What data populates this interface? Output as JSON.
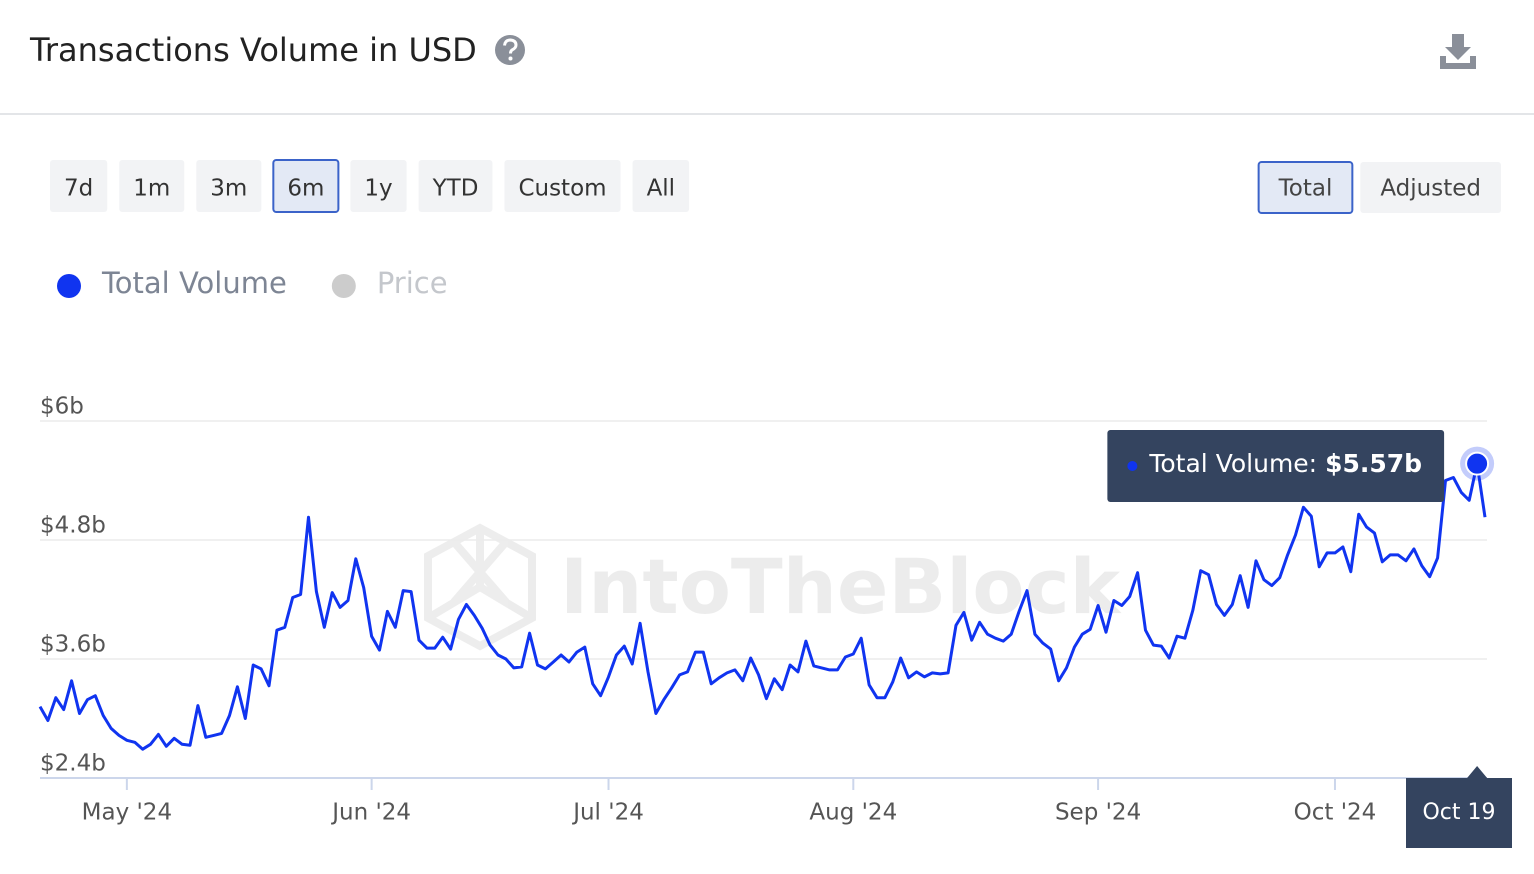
{
  "header": {
    "title": "Transactions Volume in USD"
  },
  "range_buttons": [
    "7d",
    "1m",
    "3m",
    "6m",
    "1y",
    "YTD",
    "Custom",
    "All"
  ],
  "selected_range_index": 3,
  "mode_buttons": [
    "Total",
    "Adjusted"
  ],
  "selected_mode_index": 0,
  "watermark": "IntoTheBlock",
  "chart_data": {
    "type": "line",
    "categories": [
      null,
      null,
      null,
      null,
      null,
      null,
      null,
      null,
      null,
      null,
      null,
      "May '24",
      null,
      null,
      null,
      null,
      null,
      null,
      null,
      null,
      null,
      null,
      null,
      null,
      null,
      null,
      null,
      null,
      null,
      null,
      null,
      null,
      null,
      null,
      null,
      null,
      null,
      null,
      null,
      null,
      null,
      null,
      "Jun '24",
      null,
      null,
      null,
      null,
      null,
      null,
      null,
      null,
      null,
      null,
      null,
      null,
      null,
      null,
      null,
      null,
      null,
      null,
      null,
      null,
      null,
      null,
      null,
      null,
      null,
      null,
      null,
      null,
      null,
      "Jul '24",
      null,
      null,
      null,
      null,
      null,
      null,
      null,
      null,
      null,
      null,
      null,
      null,
      null,
      null,
      null,
      null,
      null,
      null,
      null,
      null,
      null,
      null,
      null,
      null,
      null,
      null,
      null,
      null,
      null,
      null,
      "Aug '24",
      null,
      null,
      null,
      null,
      null,
      null,
      null,
      null,
      null,
      null,
      null,
      null,
      null,
      null,
      null,
      null,
      null,
      null,
      null,
      null,
      null,
      null,
      null,
      null,
      null,
      null,
      null,
      null,
      null,
      null,
      "Sep '24",
      null,
      null,
      null,
      null,
      null,
      null,
      null,
      null,
      null,
      null,
      null,
      null,
      null,
      null,
      null,
      null,
      null,
      null,
      null,
      null,
      null,
      null,
      null,
      null,
      null,
      null,
      null,
      null,
      null,
      "Oct '24",
      null,
      null,
      null,
      null,
      null,
      null,
      null,
      null,
      null,
      null,
      null,
      null,
      null,
      null,
      null,
      null,
      null,
      "Oct 19",
      null
    ],
    "series": [
      {
        "name": "Total Volume",
        "color": "#1034f0",
        "values": [
          3.12,
          2.98,
          3.21,
          3.09,
          3.38,
          3.05,
          3.19,
          3.23,
          3.03,
          2.9,
          2.83,
          2.78,
          2.76,
          2.69,
          2.74,
          2.84,
          2.72,
          2.8,
          2.74,
          2.73,
          3.13,
          2.81,
          2.83,
          2.85,
          3.03,
          3.32,
          3.0,
          3.54,
          3.5,
          3.33,
          3.89,
          3.92,
          4.22,
          4.25,
          5.03,
          4.28,
          3.92,
          4.27,
          4.12,
          4.19,
          4.61,
          4.32,
          3.83,
          3.69,
          4.08,
          3.92,
          4.29,
          4.28,
          3.79,
          3.71,
          3.71,
          3.82,
          3.7,
          4.0,
          4.15,
          4.04,
          3.91,
          3.74,
          3.64,
          3.6,
          3.51,
          3.52,
          3.86,
          3.54,
          3.5,
          3.57,
          3.64,
          3.57,
          3.67,
          3.72,
          3.35,
          3.23,
          3.42,
          3.64,
          3.73,
          3.55,
          3.96,
          3.47,
          3.05,
          3.19,
          3.31,
          3.44,
          3.47,
          3.67,
          3.67,
          3.35,
          3.41,
          3.46,
          3.49,
          3.38,
          3.61,
          3.44,
          3.2,
          3.4,
          3.29,
          3.54,
          3.47,
          3.78,
          3.53,
          3.51,
          3.49,
          3.49,
          3.62,
          3.65,
          3.81,
          3.34,
          3.21,
          3.21,
          3.37,
          3.61,
          3.41,
          3.47,
          3.42,
          3.46,
          3.45,
          3.46,
          3.94,
          4.07,
          3.79,
          3.97,
          3.85,
          3.81,
          3.78,
          3.85,
          4.08,
          4.29,
          3.85,
          3.76,
          3.7,
          3.38,
          3.51,
          3.72,
          3.85,
          3.9,
          4.14,
          3.87,
          4.19,
          4.14,
          4.23,
          4.47,
          3.89,
          3.74,
          3.73,
          3.61,
          3.83,
          3.81,
          4.09,
          4.49,
          4.45,
          4.15,
          4.04,
          4.15,
          4.44,
          4.12,
          4.59,
          4.4,
          4.34,
          4.42,
          4.65,
          4.85,
          5.13,
          5.04,
          4.53,
          4.67,
          4.67,
          4.73,
          4.48,
          5.06,
          4.93,
          4.87,
          4.58,
          4.65,
          4.65,
          4.59,
          4.71,
          4.54,
          4.43,
          4.62,
          5.4,
          5.43,
          5.28,
          5.2,
          5.57,
          5.03
        ]
      }
    ],
    "hidden_series": [
      {
        "name": "Price",
        "color": "#cccccc"
      }
    ],
    "ylim": [
      2.4,
      6
    ],
    "yticks": [
      {
        "value": 2.4,
        "label": "$2.4b"
      },
      {
        "value": 3.6,
        "label": "$3.6b"
      },
      {
        "value": 4.8,
        "label": "$4.8b"
      },
      {
        "value": 6,
        "label": "$6b"
      }
    ],
    "grid": true,
    "tooltip": {
      "index": 182,
      "label": "Total Volume:",
      "value_label": "$5.57b"
    }
  }
}
